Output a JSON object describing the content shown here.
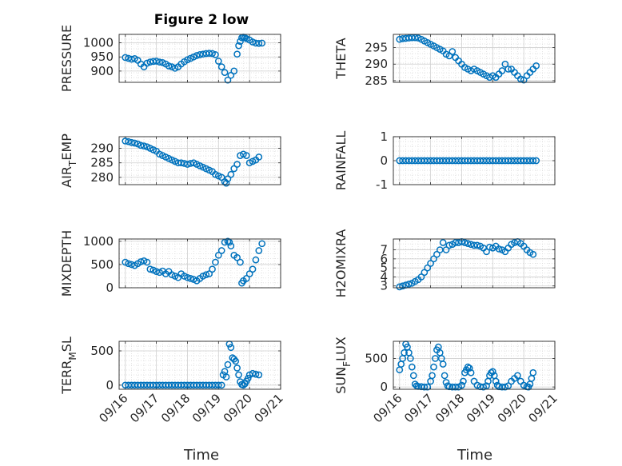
{
  "figure": {
    "title": "Figure 2 low",
    "marker_color": "#0072bd",
    "marker": "circle (open)",
    "grid": "major and minor",
    "x_ticks": [
      "09/16",
      "09/17",
      "09/18",
      "09/19",
      "09/20",
      "09/21"
    ],
    "xlabel": "Time"
  },
  "chart_data": [
    {
      "type": "scatter",
      "id": "pressure",
      "ylabel": "PRESSURE",
      "ylim": [
        860,
        1030
      ],
      "yticks": [
        {
          "v": 900,
          "t": "900"
        },
        {
          "v": 950,
          "t": "950"
        },
        {
          "v": 1000,
          "t": "1000"
        }
      ],
      "x": [
        0.0,
        0.1,
        0.2,
        0.3,
        0.4,
        0.5,
        0.6,
        0.7,
        0.8,
        0.9,
        1.0,
        1.1,
        1.2,
        1.3,
        1.4,
        1.5,
        1.6,
        1.7,
        1.8,
        1.9,
        2.0,
        2.1,
        2.2,
        2.3,
        2.4,
        2.5,
        2.6,
        2.7,
        2.8,
        2.9,
        3.0,
        3.1,
        3.2,
        3.3,
        3.4,
        3.5,
        3.6,
        3.65,
        3.7,
        3.75,
        3.8,
        3.85,
        3.9,
        4.0,
        4.1,
        4.2,
        4.3,
        4.4
      ],
      "y": [
        948,
        945,
        942,
        944,
        938,
        925,
        915,
        928,
        932,
        934,
        935,
        932,
        930,
        925,
        918,
        915,
        910,
        915,
        925,
        933,
        940,
        945,
        950,
        955,
        958,
        960,
        962,
        963,
        962,
        958,
        935,
        915,
        895,
        868,
        885,
        900,
        960,
        990,
        1005,
        1018,
        1020,
        1018,
        1015,
        1010,
        1003,
        999,
        998,
        999
      ]
    },
    {
      "type": "scatter",
      "id": "theta",
      "ylabel": "THETA",
      "ylim": [
        284.5,
        299
      ],
      "yticks": [
        {
          "v": 285,
          "t": "285"
        },
        {
          "v": 290,
          "t": "290"
        },
        {
          "v": 295,
          "t": "295"
        }
      ],
      "x": [
        0.0,
        0.1,
        0.2,
        0.3,
        0.4,
        0.5,
        0.6,
        0.7,
        0.8,
        0.9,
        1.0,
        1.1,
        1.2,
        1.3,
        1.4,
        1.5,
        1.6,
        1.7,
        1.8,
        1.9,
        2.0,
        2.1,
        2.2,
        2.3,
        2.4,
        2.5,
        2.6,
        2.7,
        2.8,
        2.9,
        3.0,
        3.1,
        3.2,
        3.3,
        3.4,
        3.5,
        3.6,
        3.7,
        3.8,
        3.9,
        4.0,
        4.1,
        4.2,
        4.3,
        4.4
      ],
      "y": [
        297.5,
        297.7,
        297.8,
        297.9,
        298.0,
        298.0,
        297.9,
        297.5,
        297.0,
        296.5,
        296.0,
        295.5,
        295.0,
        294.5,
        294.0,
        293.0,
        292.5,
        293.8,
        292.0,
        291.0,
        290.0,
        289.0,
        288.5,
        288.0,
        288.5,
        288.0,
        287.5,
        287.0,
        286.5,
        286.0,
        286.5,
        286.0,
        287.0,
        288.0,
        290.0,
        288.5,
        288.5,
        287.5,
        286.5,
        285.5,
        285.2,
        286.5,
        287.5,
        288.5,
        289.5
      ]
    },
    {
      "type": "scatter",
      "id": "air-temp",
      "ylabel": "AIR_TEMP",
      "ylim": [
        277.5,
        294
      ],
      "yticks": [
        {
          "v": 280,
          "t": "280"
        },
        {
          "v": 285,
          "t": "285"
        },
        {
          "v": 290,
          "t": "290"
        }
      ],
      "x": [
        0.0,
        0.1,
        0.2,
        0.3,
        0.4,
        0.5,
        0.6,
        0.7,
        0.8,
        0.9,
        1.0,
        1.1,
        1.2,
        1.3,
        1.4,
        1.5,
        1.6,
        1.7,
        1.8,
        1.9,
        2.0,
        2.1,
        2.2,
        2.3,
        2.4,
        2.5,
        2.6,
        2.7,
        2.8,
        2.9,
        3.0,
        3.1,
        3.2,
        3.25,
        3.3,
        3.4,
        3.5,
        3.6,
        3.7,
        3.8,
        3.9,
        4.0,
        4.1,
        4.2,
        4.3
      ],
      "y": [
        292.5,
        292.3,
        292.0,
        291.8,
        291.5,
        291.0,
        290.8,
        290.5,
        290.0,
        289.5,
        289.0,
        288.0,
        287.5,
        287.0,
        286.5,
        286.0,
        285.5,
        285.0,
        285.0,
        284.8,
        284.5,
        284.8,
        285.0,
        284.5,
        284.0,
        283.5,
        283.0,
        282.5,
        282.0,
        281.0,
        280.5,
        280.0,
        278.5,
        278.0,
        279.5,
        281.0,
        283.0,
        284.5,
        287.5,
        288.0,
        287.5,
        285.0,
        285.5,
        286.0,
        287.0
      ]
    },
    {
      "type": "scatter",
      "id": "rainfall",
      "ylabel": "RAINFALL",
      "ylim": [
        -1,
        1
      ],
      "yticks": [
        {
          "v": -1,
          "t": "-1"
        },
        {
          "v": 0,
          "t": "0"
        },
        {
          "v": 1,
          "t": "1"
        }
      ],
      "x": [
        0.0,
        0.1,
        0.2,
        0.3,
        0.4,
        0.5,
        0.6,
        0.7,
        0.8,
        0.9,
        1.0,
        1.1,
        1.2,
        1.3,
        1.4,
        1.5,
        1.6,
        1.7,
        1.8,
        1.9,
        2.0,
        2.1,
        2.2,
        2.3,
        2.4,
        2.5,
        2.6,
        2.7,
        2.8,
        2.9,
        3.0,
        3.1,
        3.2,
        3.3,
        3.4,
        3.5,
        3.6,
        3.7,
        3.8,
        3.9,
        4.0,
        4.1,
        4.2,
        4.3,
        4.4
      ],
      "y": [
        0,
        0,
        0,
        0,
        0,
        0,
        0,
        0,
        0,
        0,
        0,
        0,
        0,
        0,
        0,
        0,
        0,
        0,
        0,
        0,
        0,
        0,
        0,
        0,
        0,
        0,
        0,
        0,
        0,
        0,
        0,
        0,
        0,
        0,
        0,
        0,
        0,
        0,
        0,
        0,
        0,
        0,
        0,
        0,
        0
      ]
    },
    {
      "type": "scatter",
      "id": "mixdepth",
      "ylabel": "MIXDEPTH",
      "ylim": [
        0,
        1050
      ],
      "yticks": [
        {
          "v": 0,
          "t": "0"
        },
        {
          "v": 500,
          "t": "500"
        },
        {
          "v": 1000,
          "t": "1000"
        }
      ],
      "x": [
        0.0,
        0.1,
        0.2,
        0.3,
        0.4,
        0.5,
        0.6,
        0.7,
        0.8,
        0.9,
        1.0,
        1.1,
        1.2,
        1.3,
        1.4,
        1.5,
        1.6,
        1.7,
        1.8,
        1.9,
        2.0,
        2.1,
        2.2,
        2.3,
        2.4,
        2.5,
        2.6,
        2.7,
        2.8,
        2.9,
        3.0,
        3.1,
        3.2,
        3.3,
        3.35,
        3.4,
        3.5,
        3.6,
        3.7,
        3.75,
        3.8,
        3.9,
        4.0,
        4.1,
        4.2,
        4.3,
        4.4
      ],
      "y": [
        550,
        520,
        500,
        480,
        520,
        560,
        580,
        550,
        400,
        380,
        350,
        330,
        360,
        300,
        350,
        280,
        250,
        220,
        300,
        250,
        220,
        200,
        180,
        150,
        200,
        250,
        280,
        300,
        400,
        550,
        700,
        800,
        980,
        1000,
        980,
        900,
        700,
        650,
        550,
        100,
        150,
        200,
        300,
        400,
        600,
        800,
        950
      ]
    },
    {
      "type": "scatter",
      "id": "h2omixra",
      "ylabel": "H2OMIXRA",
      "ylim": [
        2.8,
        8.2
      ],
      "yticks": [
        {
          "v": 3,
          "t": "3"
        },
        {
          "v": 4,
          "t": "4"
        },
        {
          "v": 5,
          "t": "5"
        },
        {
          "v": 6,
          "t": "6"
        },
        {
          "v": 7,
          "t": "7"
        }
      ],
      "x": [
        0.0,
        0.1,
        0.2,
        0.3,
        0.4,
        0.5,
        0.6,
        0.7,
        0.8,
        0.9,
        1.0,
        1.1,
        1.2,
        1.3,
        1.4,
        1.5,
        1.6,
        1.7,
        1.8,
        1.9,
        2.0,
        2.1,
        2.2,
        2.3,
        2.4,
        2.5,
        2.6,
        2.7,
        2.8,
        2.9,
        3.0,
        3.1,
        3.2,
        3.3,
        3.4,
        3.5,
        3.6,
        3.7,
        3.8,
        3.9,
        4.0,
        4.1,
        4.2,
        4.3
      ],
      "y": [
        2.9,
        3.0,
        3.1,
        3.2,
        3.3,
        3.5,
        3.7,
        4.0,
        4.5,
        5.0,
        5.5,
        6.0,
        6.5,
        7.0,
        7.8,
        7.0,
        7.5,
        7.6,
        7.8,
        7.8,
        7.9,
        7.8,
        7.7,
        7.6,
        7.5,
        7.5,
        7.4,
        7.2,
        6.8,
        7.3,
        7.2,
        7.4,
        7.1,
        7.0,
        6.8,
        7.2,
        7.6,
        7.8,
        7.9,
        7.7,
        7.4,
        7.0,
        6.7,
        6.5
      ]
    },
    {
      "type": "scatter",
      "id": "terr-msl",
      "ylabel": "TERR_MSL",
      "ylim": [
        -60,
        640
      ],
      "yticks": [
        {
          "v": 0,
          "t": "0"
        },
        {
          "v": 500,
          "t": "500"
        }
      ],
      "x": [
        0.0,
        0.1,
        0.2,
        0.3,
        0.4,
        0.5,
        0.6,
        0.7,
        0.8,
        0.9,
        1.0,
        1.1,
        1.2,
        1.3,
        1.4,
        1.5,
        1.6,
        1.7,
        1.8,
        1.9,
        2.0,
        2.1,
        2.2,
        2.3,
        2.4,
        2.5,
        2.6,
        2.7,
        2.8,
        2.9,
        3.0,
        3.1,
        3.15,
        3.2,
        3.25,
        3.3,
        3.35,
        3.4,
        3.45,
        3.5,
        3.55,
        3.6,
        3.65,
        3.7,
        3.75,
        3.8,
        3.85,
        3.9,
        3.95,
        4.0,
        4.1,
        4.2,
        4.3
      ],
      "y": [
        0,
        0,
        0,
        0,
        0,
        0,
        0,
        0,
        0,
        0,
        0,
        0,
        0,
        0,
        0,
        0,
        0,
        0,
        0,
        0,
        0,
        0,
        0,
        0,
        0,
        0,
        0,
        0,
        0,
        0,
        0,
        0,
        150,
        200,
        120,
        300,
        600,
        550,
        400,
        380,
        350,
        250,
        150,
        50,
        10,
        0,
        20,
        60,
        100,
        150,
        170,
        160,
        150
      ]
    },
    {
      "type": "scatter",
      "id": "sun-flux",
      "ylabel": "SUN_FLUX",
      "ylim": [
        -40,
        800
      ],
      "yticks": [
        {
          "v": 0,
          "t": "0"
        },
        {
          "v": 500,
          "t": "500"
        }
      ],
      "x": [
        0.0,
        0.05,
        0.1,
        0.15,
        0.2,
        0.25,
        0.3,
        0.35,
        0.4,
        0.45,
        0.5,
        0.55,
        0.6,
        0.7,
        0.8,
        0.9,
        1.0,
        1.05,
        1.1,
        1.15,
        1.2,
        1.25,
        1.3,
        1.35,
        1.4,
        1.45,
        1.5,
        1.55,
        1.6,
        1.7,
        1.8,
        1.9,
        2.0,
        2.05,
        2.1,
        2.15,
        2.2,
        2.25,
        2.3,
        2.4,
        2.5,
        2.6,
        2.7,
        2.8,
        2.85,
        2.9,
        2.95,
        3.0,
        3.05,
        3.1,
        3.15,
        3.2,
        3.3,
        3.4,
        3.5,
        3.6,
        3.7,
        3.8,
        3.9,
        4.0,
        4.1,
        4.15,
        4.2,
        4.25,
        4.3
      ],
      "y": [
        300,
        400,
        500,
        600,
        750,
        700,
        600,
        500,
        350,
        200,
        50,
        20,
        10,
        5,
        0,
        0,
        100,
        200,
        350,
        500,
        650,
        700,
        600,
        500,
        400,
        200,
        80,
        20,
        5,
        0,
        0,
        0,
        30,
        100,
        250,
        300,
        350,
        330,
        250,
        100,
        30,
        5,
        0,
        20,
        100,
        200,
        250,
        270,
        200,
        100,
        30,
        5,
        0,
        0,
        20,
        100,
        150,
        200,
        100,
        30,
        5,
        0,
        50,
        150,
        250
      ]
    }
  ]
}
